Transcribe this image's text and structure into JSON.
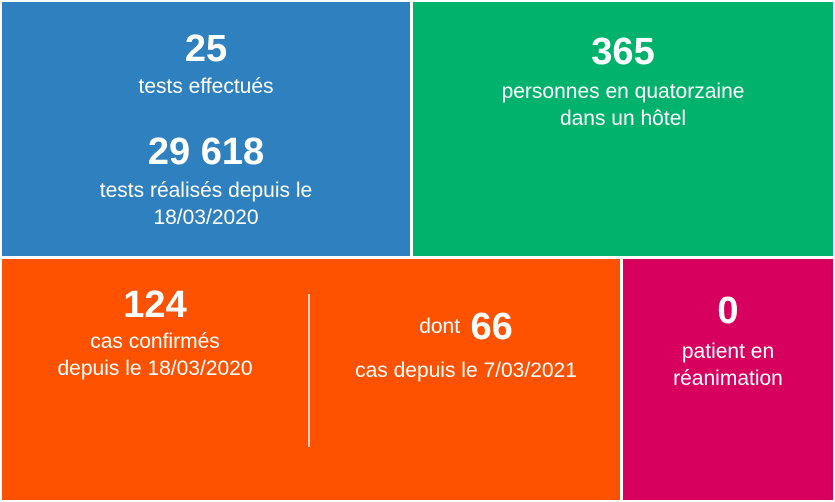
{
  "tests": {
    "daily_value": "25",
    "daily_label": "tests effectués",
    "total_value": "29 618",
    "total_label_line1": "tests réalisés depuis le",
    "total_label_line2": "18/03/2020"
  },
  "quarantine": {
    "value": "365",
    "label_line1": "personnes en quatorzaine",
    "label_line2": "dans un hôtel"
  },
  "cases": {
    "total_value": "124",
    "total_label_line1": "cas confirmés",
    "total_label_line2": "depuis le 18/03/2020",
    "recent_prefix": "dont",
    "recent_value": "66",
    "recent_label": "cas depuis le 7/03/2021"
  },
  "icu": {
    "value": "0",
    "label_line1": "patient en",
    "label_line2": "réanimation"
  },
  "colors": {
    "blue": "#2f80bf",
    "green": "#00b26b",
    "orange": "#ff5200",
    "pink": "#d8005f"
  }
}
